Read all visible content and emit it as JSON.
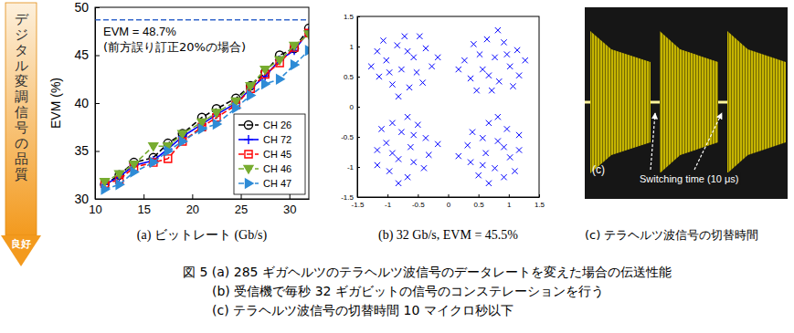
{
  "chart_data": [
    {
      "type": "line",
      "x_label": "(a)  ビットレート (Gb/s)",
      "y_label": "EVM (%)",
      "x": [
        11,
        12.5,
        14,
        16,
        17.5,
        19,
        21,
        22.5,
        24.5,
        26,
        27.5,
        29,
        30.5,
        32
      ],
      "xlim": [
        10,
        32
      ],
      "xticks": [
        10,
        15,
        20,
        25,
        30
      ],
      "ylim": [
        30,
        50
      ],
      "yticks": [
        30,
        35,
        40,
        45,
        50
      ],
      "legend": "lower right",
      "series": [
        {
          "name": "CH 26",
          "color": "#000000",
          "marker": "circle",
          "line_style": "dashed",
          "values": [
            31.5,
            32.5,
            33.8,
            34.3,
            35.8,
            36.8,
            38.5,
            39.4,
            40.5,
            41.8,
            43.2,
            45,
            45.7,
            47.8
          ]
        },
        {
          "name": "CH 72",
          "color": "#0000ff",
          "marker": "plus",
          "line_style": "solid",
          "values": [
            31.5,
            32.3,
            33.5,
            34.0,
            35.2,
            36.5,
            37.8,
            38.8,
            40.0,
            41.5,
            42.8,
            44.5,
            45.5,
            47.5
          ]
        },
        {
          "name": "CH 45",
          "color": "#ff0000",
          "marker": "square",
          "line_style": "dashed",
          "values": [
            31.6,
            32.0,
            33.3,
            33.8,
            34.2,
            36.0,
            37.5,
            38.5,
            39.8,
            41.5,
            43.0,
            44.2,
            45.8,
            47.3
          ]
        },
        {
          "name": "CH 46",
          "color": "#77ac30",
          "marker": "triangle-down",
          "line_style": "dashed",
          "values": [
            31.8,
            32.6,
            33.6,
            35.5,
            35.5,
            36.8,
            38.0,
            39.0,
            40.2,
            41.8,
            43.5,
            44.5,
            46.0,
            47.2
          ]
        },
        {
          "name": "CH 47",
          "color": "#2e8bd6",
          "marker": "triangle-right",
          "line_style": "dashed",
          "values": [
            31.0,
            31.5,
            32.8,
            33.8,
            35.0,
            36.0,
            37.3,
            37.8,
            39.5,
            40.8,
            42.0,
            42.5,
            44.0,
            45.5
          ]
        }
      ],
      "reference_line": {
        "value": 48.7,
        "label": "EVM = 48.7%",
        "note": "(前方誤り訂正20%の場合)",
        "color": "#3366cc",
        "line_style": "dashed"
      }
    },
    {
      "type": "scatter",
      "title": "(b)  32 Gb/s, EVM = 45.5%",
      "marker": "x",
      "color": "#0000ff",
      "xlim": [
        -1.5,
        1.5
      ],
      "xticks": [
        -1.5,
        -1,
        -0.5,
        0,
        0.5,
        1,
        1.5
      ],
      "ylim": [
        -1.5,
        1.5
      ],
      "yticks": [
        -1.5,
        -1,
        -0.5,
        0,
        0.5,
        1,
        1.5
      ],
      "x": [
        0.77,
        0.52,
        1.02,
        0.37,
        0.84,
        0.64,
        1.14,
        0.27,
        0.92,
        0.57,
        0.72,
        1.07,
        0.42,
        1.27,
        0.17,
        0.82,
        0.67,
        0.97,
        0.47,
        1.17,
        -0.77,
        -0.52,
        -1.02,
        -0.37,
        -0.84,
        -0.64,
        -1.14,
        -0.27,
        -0.92,
        -0.57,
        -0.72,
        -1.07,
        -0.42,
        -1.27,
        -0.17,
        -0.82,
        -0.67,
        -0.97,
        -0.47,
        -1.17,
        -0.62,
        -0.57,
        -0.77,
        -0.97,
        -1.02,
        -0.32,
        -0.5,
        -0.67,
        -0.37,
        -0.82,
        -1.17,
        -1.1,
        -0.4,
        -0.67,
        -0.82,
        -0.17,
        -0.92,
        -0.57,
        -1.17,
        -0.92,
        0.62,
        0.57,
        0.77,
        0.97,
        1.02,
        0.32,
        0.5,
        0.67,
        0.37,
        0.82,
        1.17,
        1.1,
        0.4,
        0.67,
        0.82,
        0.17,
        0.92,
        0.57,
        1.17,
        0.92
      ],
      "values": [
        0.82,
        0.87,
        0.67,
        0.47,
        0.42,
        1.12,
        0.94,
        0.77,
        1.07,
        0.62,
        0.27,
        0.34,
        1.04,
        0.77,
        0.62,
        1.27,
        0.52,
        0.87,
        0.27,
        0.52,
        0.62,
        0.57,
        0.77,
        0.97,
        1.02,
        0.32,
        0.5,
        0.67,
        0.37,
        0.82,
        1.17,
        1.1,
        0.4,
        0.67,
        0.82,
        0.17,
        0.92,
        0.57,
        1.17,
        0.92,
        -0.67,
        -0.92,
        -0.42,
        -1.07,
        -0.6,
        -0.8,
        -0.3,
        -1.17,
        -0.52,
        -0.87,
        -0.72,
        -0.37,
        -1.02,
        -0.17,
        -1.27,
        -0.62,
        -0.77,
        -0.47,
        -0.97,
        -0.27,
        -0.77,
        -0.52,
        -1.02,
        -0.37,
        -0.84,
        -0.64,
        -1.14,
        -0.27,
        -0.92,
        -0.57,
        -0.72,
        -1.07,
        -0.42,
        -1.27,
        -0.17,
        -0.82,
        -0.67,
        -0.97,
        -0.47,
        -1.17
      ]
    }
  ],
  "side_label": {
    "text": "デジタル変調信号の品質",
    "good": "良好"
  },
  "oscilloscope": {
    "label": "(c)",
    "annotation": "Switching time (10 μs)",
    "caption": "(c) テラヘルツ波信号の切替時間"
  },
  "caption": [
    "図 5 (a) 285 ギガヘルツのテラヘルツ波信号のデータレートを変えた場合の伝送性能",
    "(b) 受信機で毎秒 32 ギガビットの信号のコンステレーションを行う",
    "(c) テラヘルツ波信号の切替時間 10 マイクロ秒以下"
  ]
}
